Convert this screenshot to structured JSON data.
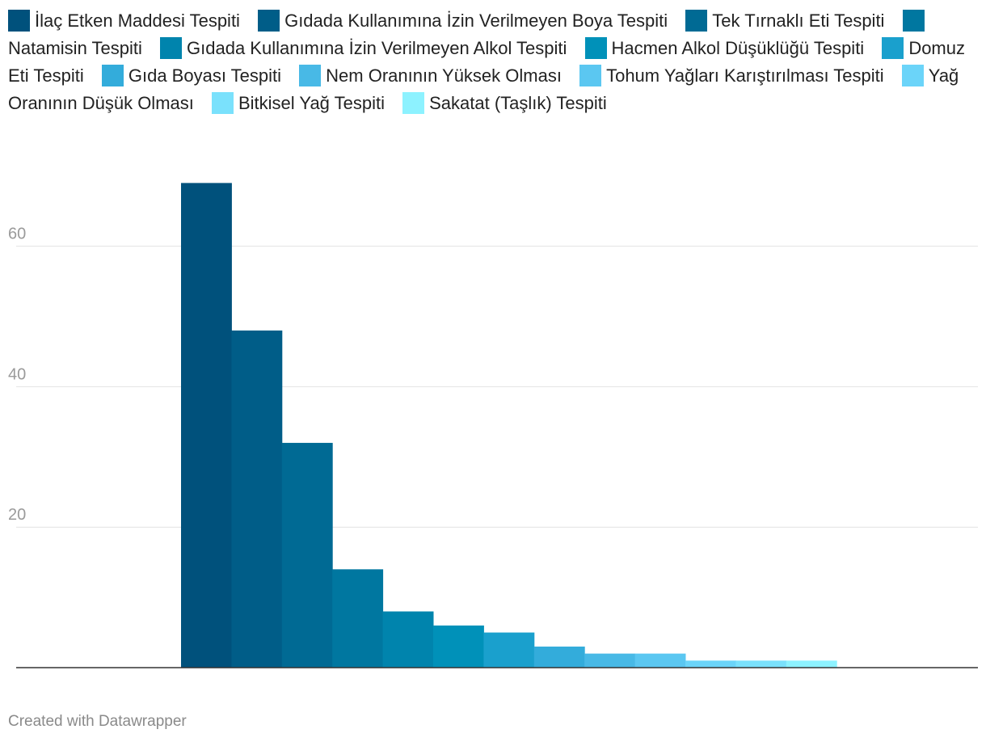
{
  "chart_data": {
    "type": "bar",
    "categories": [
      "İlaç Etken Maddesi Tespiti",
      "Gıdada Kullanımına İzin Verilmeyen Boya Tespiti",
      "Tek Tırnaklı Eti Tespiti",
      "Natamisin Tespiti",
      "Gıdada Kullanımına İzin Verilmeyen Alkol Tespiti",
      "Hacmen Alkol Düşüklüğü Tespiti",
      "Domuz Eti Tespiti",
      "Gıda Boyası Tespiti",
      "Nem Oranının Yüksek Olması",
      "Tohum Yağları Karıştırılması Tespiti",
      "Yağ Oranının Düşük Olması",
      "Bitkisel Yağ Tespiti",
      "Sakatat (Taşlık) Tespiti"
    ],
    "values": [
      69,
      48,
      32,
      14,
      8,
      6,
      5,
      3,
      2,
      2,
      1,
      1,
      1
    ],
    "colors": [
      "#00517c",
      "#005d88",
      "#006a94",
      "#0077a0",
      "#0084ad",
      "#0091b9",
      "#1aa0cd",
      "#33acdb",
      "#48b9e6",
      "#5bc7f1",
      "#6bd4f9",
      "#7ae1fc",
      "#8df2ff"
    ],
    "yticks": [
      20,
      40,
      60
    ],
    "ylim": [
      0,
      70
    ],
    "grid": true,
    "legend_position": "top"
  },
  "footer": {
    "credit": "Created with Datawrapper"
  }
}
